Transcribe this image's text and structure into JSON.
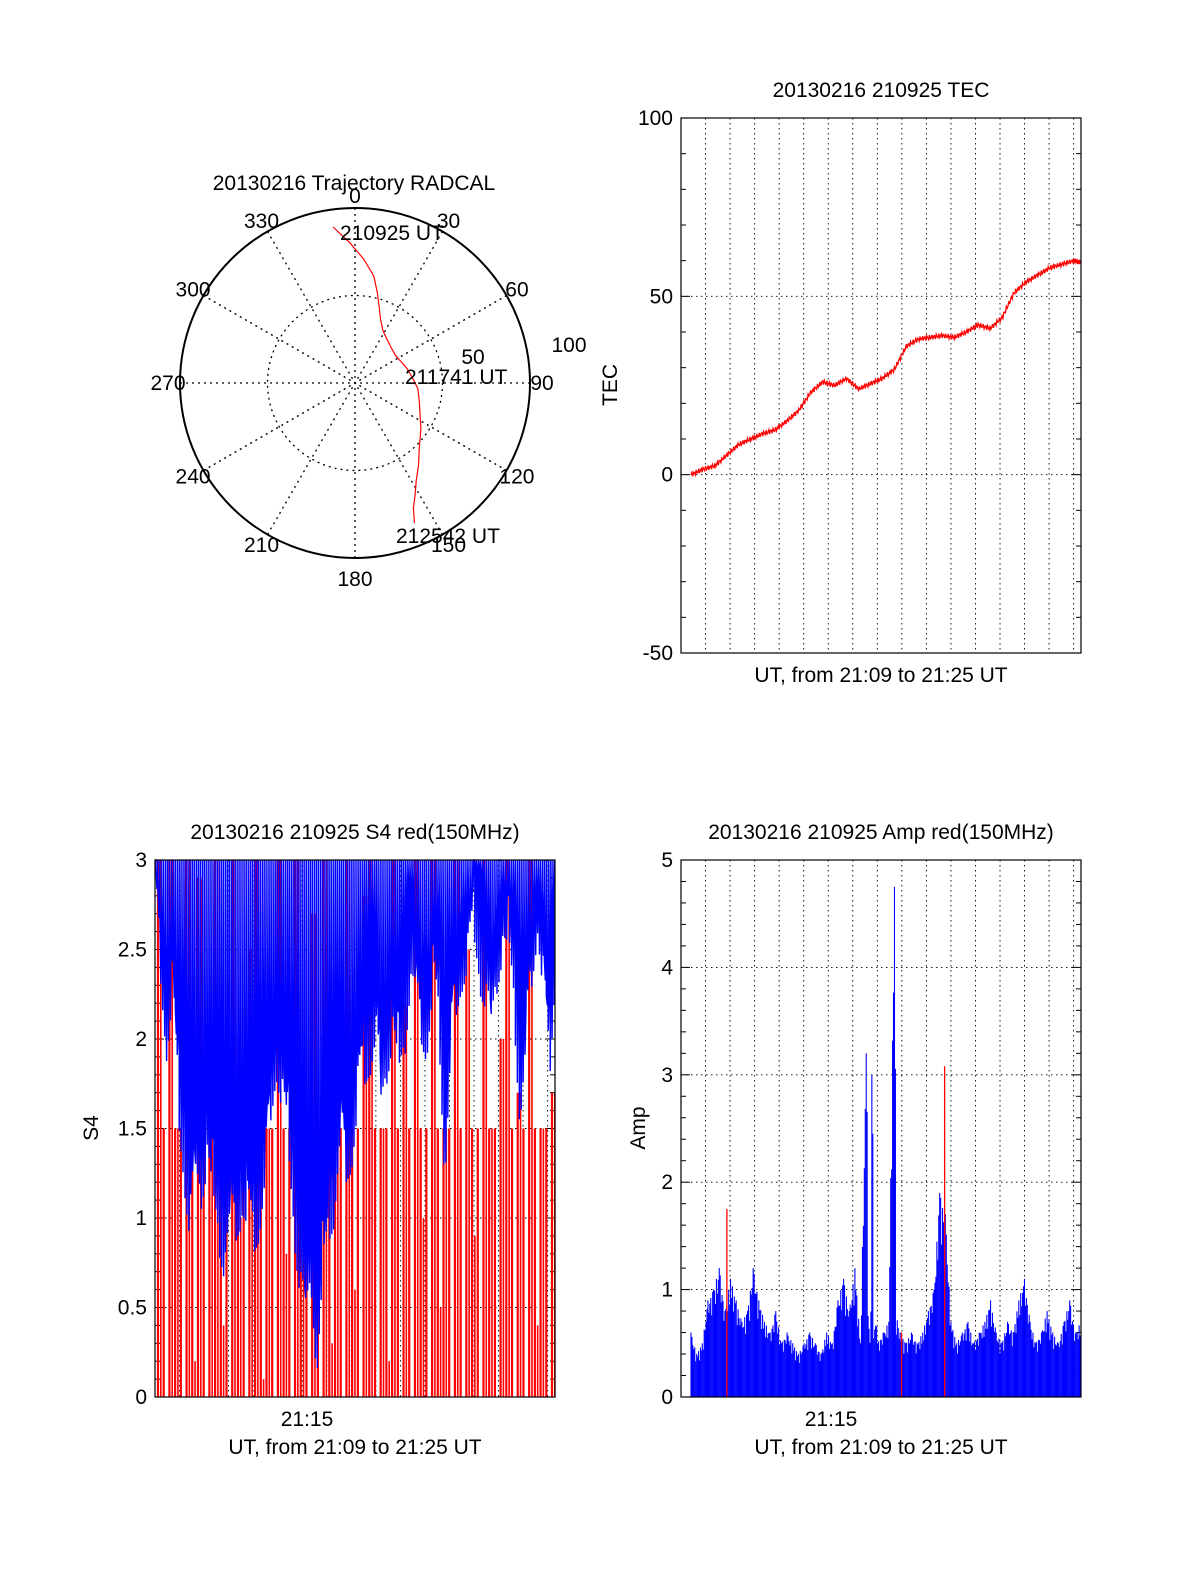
{
  "colors": {
    "red": "#ff0000",
    "blue": "#0000ff",
    "axis": "#000000",
    "grid": "#000000"
  },
  "chart_data": [
    {
      "type": "polar",
      "title": "20130216 Trajectory RADCAL",
      "angle_labels": [
        "0",
        "30",
        "60",
        "90",
        "120",
        "150",
        "180",
        "210",
        "240",
        "270",
        "300",
        "330"
      ],
      "radius_labels": [
        "50",
        "100"
      ],
      "series": [
        {
          "color": "red",
          "points": [
            [
              352,
              90
            ],
            [
              358,
              80
            ],
            [
              4,
              71
            ],
            [
              10,
              62
            ],
            [
              14,
              53
            ],
            [
              18,
              45
            ],
            [
              22,
              39
            ],
            [
              28,
              34
            ],
            [
              36,
              31
            ],
            [
              45,
              29
            ],
            [
              55,
              28
            ],
            [
              65,
              29
            ],
            [
              75,
              31
            ],
            [
              85,
              33
            ],
            [
              95,
              36
            ],
            [
              105,
              38
            ],
            [
              115,
              41
            ],
            [
              125,
              46
            ],
            [
              135,
              52
            ],
            [
              142,
              59
            ],
            [
              148,
              66
            ],
            [
              152,
              73
            ],
            [
              155,
              79
            ],
            [
              157,
              87
            ]
          ]
        }
      ],
      "annotations": [
        "210925 UT",
        "211741 UT",
        "212542 UT"
      ]
    },
    {
      "type": "line",
      "title": "20130216 210925 TEC",
      "xlabel": "UT, from 21:09 to 21:25 UT",
      "ylabel": "TEC",
      "xlim_minutes": [
        0,
        16.3
      ],
      "ylim": [
        -50,
        100
      ],
      "yticks": [
        "-50",
        "0",
        "50",
        "100"
      ],
      "series": [
        {
          "color": "red",
          "x": [
            0.0,
            0.5,
            1.0,
            1.5,
            2.0,
            2.5,
            3.0,
            3.5,
            4.0,
            4.5,
            5.0,
            5.5,
            6.0,
            6.5,
            7.0,
            7.5,
            8.0,
            8.5,
            9.0,
            9.5,
            10.0,
            10.5,
            11.0,
            11.5,
            12.0,
            12.5,
            13.0,
            13.5,
            14.0,
            14.5,
            15.0,
            15.5,
            16.0,
            16.3
          ],
          "y": [
            0,
            1.5,
            2.5,
            5.5,
            8.5,
            10,
            11.5,
            12.5,
            15,
            18,
            23,
            26,
            25,
            27,
            24,
            25.5,
            27,
            29.5,
            36,
            38,
            38.5,
            39,
            38.5,
            40,
            42,
            41,
            44,
            51,
            54,
            56,
            58,
            59,
            60,
            59.5
          ]
        }
      ]
    },
    {
      "type": "line",
      "title": "20130216 210925 S4 red(150MHz)",
      "xlabel": "UT, from 21:09 to 21:25 UT",
      "ylabel": "S4",
      "xlim_minutes": [
        0,
        16.3
      ],
      "xtick_labels": [
        "21:15"
      ],
      "ylim": [
        0,
        3
      ],
      "yticks": [
        "0",
        "0.5",
        "1",
        "1.5",
        "2",
        "2.5",
        "3"
      ],
      "series": [
        {
          "color": "blue",
          "x_start": 0,
          "x_end": 16.3,
          "y": [
            3.0,
            2.6,
            2.2,
            2.5,
            1.8,
            1.5,
            1.2,
            1.5,
            1.4,
            1.6,
            1.3,
            1.15,
            1.0,
            1.25,
            1.2,
            1.3,
            1.2,
            1.1,
            1.2,
            1.5,
            1.8,
            2.1,
            1.9,
            1.6,
            1.2,
            0.9,
            0.7,
            0.9,
            0.4,
            0.9,
            1.2,
            1.3,
            1.7,
            1.5,
            1.6,
            1.9,
            2.0,
            2.1,
            2.3,
            1.9,
            2.1,
            2.3,
            2.0,
            2.2,
            2.6,
            2.5,
            2.3,
            2.2,
            2.5,
            2.3,
            1.5,
            2.2,
            2.4,
            2.6,
            2.7,
            2.8,
            2.6,
            2.5,
            2.3,
            2.6,
            2.8,
            2.7,
            2.4,
            1.8,
            2.2,
            2.6,
            2.9,
            2.5,
            2.0,
            2.6
          ]
        },
        {
          "color": "red",
          "x_start": 0,
          "x_end": 16.3,
          "y": [
            3.0,
            0.0,
            3.0,
            1.5,
            0.0,
            3.0,
            0.2,
            2.9,
            0.0,
            1.5,
            3.0,
            0.4,
            0.0,
            3.0,
            1.0,
            0.0,
            2.5,
            3.0,
            0.1,
            1.5,
            0.0,
            3.0,
            0.8,
            0.0,
            3.0,
            1.2,
            0.0,
            2.7,
            0.0,
            3.0,
            0.3,
            1.5,
            0.0,
            3.0,
            0.6,
            0.0,
            2.8,
            3.0,
            0.0,
            1.5,
            0.2,
            3.0,
            0.0,
            2.2,
            0.0,
            3.0,
            1.0,
            0.0,
            3.0,
            0.5,
            1.5,
            0.0,
            3.0,
            0.0,
            2.5,
            0.9,
            0.0,
            3.0,
            1.5,
            0.0,
            2.0,
            3.0,
            0.0,
            1.7,
            0.0,
            3.0,
            0.4,
            1.5,
            0.0,
            1.7
          ]
        }
      ]
    },
    {
      "type": "line",
      "title": "20130216 210925 Amp red(150MHz)",
      "xlabel": "UT, from 21:09 to 21:25 UT",
      "ylabel": "Amp",
      "xlim_minutes": [
        0,
        16.3
      ],
      "xtick_labels": [
        "21:15"
      ],
      "ylim": [
        0,
        5
      ],
      "yticks": [
        "0",
        "1",
        "2",
        "3",
        "4",
        "5"
      ],
      "series": [
        {
          "color": "blue",
          "x_start": 0,
          "x_end": 16.3,
          "y": [
            0.6,
            0.4,
            0.5,
            0.9,
            1.0,
            1.2,
            0.8,
            1.1,
            0.9,
            0.7,
            0.8,
            1.2,
            0.9,
            0.7,
            0.6,
            0.8,
            0.5,
            0.6,
            0.5,
            0.4,
            0.5,
            0.6,
            0.5,
            0.4,
            0.6,
            0.5,
            0.9,
            1.1,
            0.8,
            1.2,
            0.5,
            3.2,
            3.0,
            0.5,
            0.6,
            0.7,
            4.75,
            0.6,
            0.5,
            0.6,
            0.5,
            0.6,
            0.8,
            1.0,
            1.9,
            1.7,
            0.7,
            0.5,
            0.6,
            0.7,
            0.5,
            0.6,
            0.7,
            0.9,
            0.6,
            0.5,
            0.7,
            0.6,
            0.9,
            1.1,
            0.7,
            0.5,
            0.6,
            0.8,
            0.6,
            0.5,
            0.7,
            0.9,
            0.6,
            0.7
          ]
        },
        {
          "color": "red",
          "spikes": [
            [
              1.5,
              1.75
            ],
            [
              7.3,
              0.0
            ],
            [
              8.8,
              0.6
            ],
            [
              10.6,
              3.08
            ]
          ]
        }
      ]
    }
  ]
}
